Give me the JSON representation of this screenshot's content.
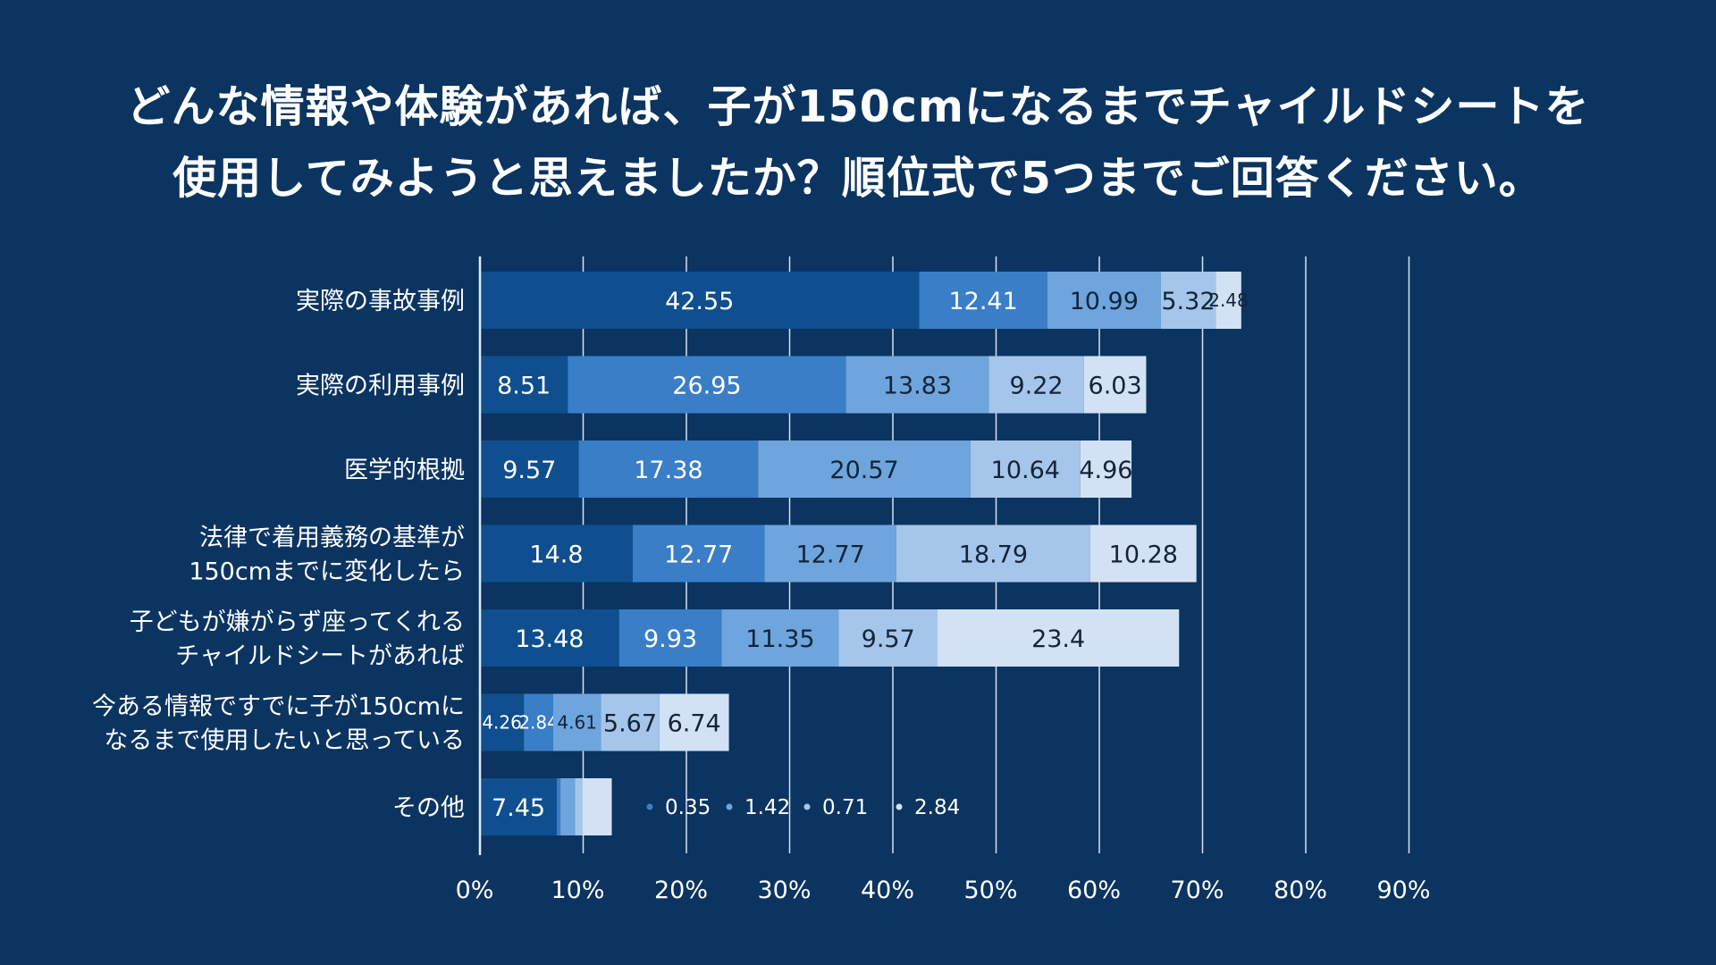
{
  "title_lines": [
    "どんな情報や体験があれば、子が150cmになるまでチャイルドシートを",
    "使用してみようと思えましたか？順位式で5つまでご回答ください。"
  ],
  "chart_data": {
    "type": "bar",
    "orientation": "horizontal",
    "stacked": true,
    "title": "どんな情報や体験があれば、子が150cmになるまでチャイルドシートを使用してみようと思えましたか？順位式で5つまでご回答ください。",
    "categories": [
      [
        "実際の事故事例"
      ],
      [
        "実際の利用事例"
      ],
      [
        "医学的根拠"
      ],
      [
        "法律で着用義務の基準が",
        "150cmまでに変化したら"
      ],
      [
        "子どもが嫌がらず座ってくれる",
        "チャイルドシートがあれば"
      ],
      [
        "今ある情報ですでに子が150cmに",
        "なるまで使用したいと思っている"
      ],
      [
        "その他"
      ]
    ],
    "series_values": [
      [
        42.55,
        12.41,
        10.99,
        5.32,
        2.48
      ],
      [
        8.51,
        26.95,
        13.83,
        9.22,
        6.03
      ],
      [
        9.57,
        17.38,
        20.57,
        10.64,
        4.96
      ],
      [
        14.8,
        12.77,
        12.77,
        18.79,
        10.28
      ],
      [
        13.48,
        9.93,
        11.35,
        9.57,
        23.4
      ],
      [
        4.26,
        2.84,
        4.61,
        5.67,
        6.74
      ],
      [
        7.45,
        0.35,
        1.42,
        0.71,
        2.84
      ]
    ],
    "series_value_labels": [
      [
        "42.55",
        "12.41",
        "10.99",
        "5.32",
        "2.48"
      ],
      [
        "8.51",
        "26.95",
        "13.83",
        "9.22",
        "6.03"
      ],
      [
        "9.57",
        "17.38",
        "20.57",
        "10.64",
        "4.96"
      ],
      [
        "14.8",
        "12.77",
        "12.77",
        "18.79",
        "10.28"
      ],
      [
        "13.48",
        "9.93",
        "11.35",
        "9.57",
        "23.4"
      ],
      [
        "4.26",
        "2.84",
        "4.61",
        "5.67",
        "6.74"
      ],
      [
        "7.45",
        "0.35",
        "1.42",
        "0.71",
        "2.84"
      ]
    ],
    "colors": [
      "#0f4f8f",
      "#3a7ec8",
      "#6ea5dc",
      "#a5c6ea",
      "#d2e2f4"
    ],
    "xlim": [
      0,
      90
    ],
    "x_ticks": [
      "0%",
      "10%",
      "20%",
      "30%",
      "40%",
      "50%",
      "60%",
      "70%",
      "80%",
      "90%"
    ],
    "grid": true,
    "legend": "none"
  }
}
